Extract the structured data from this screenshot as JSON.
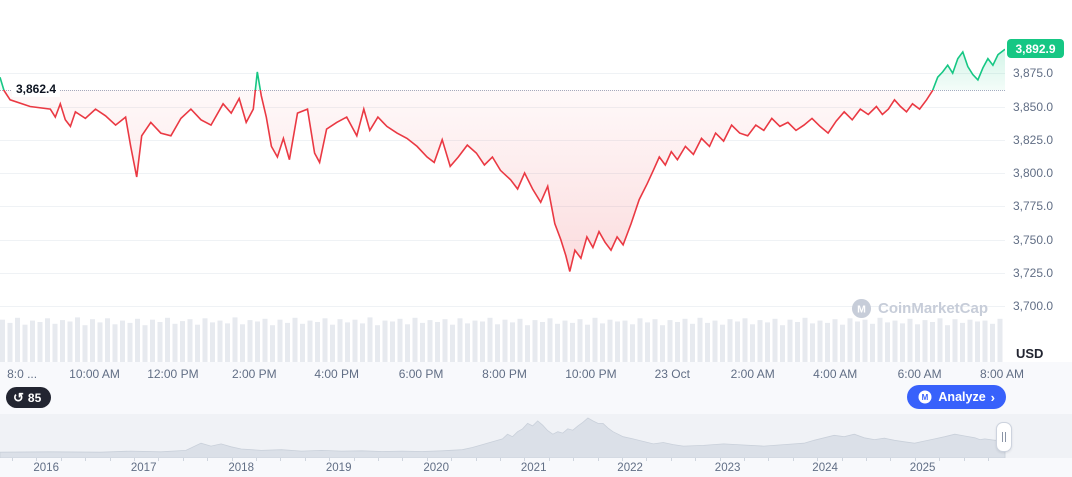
{
  "ui": {
    "usd_label": "USD",
    "history_count": "85",
    "analyze_label": "Analyze",
    "analyze_chevron": "›"
  },
  "watermark": {
    "text": "CoinMarketCap"
  },
  "colors": {
    "up": "#16c784",
    "down": "#ea3943",
    "accent_blue": "#3861fb",
    "grid": "#eff2f5",
    "axis_text": "#616e85",
    "volume": "#e7eaef",
    "mini_fill": "#dbe0e8",
    "mini_stroke": "#c9d0da",
    "badge_dark": "#222531",
    "watermark_gray": "#c7cdd9"
  },
  "chart_data": [
    {
      "type": "line",
      "title": "24h price chart",
      "unit": "USD",
      "grid": true,
      "baseline_price": 3862.4,
      "baseline_label": "3,862.4",
      "current_price": 3892.9,
      "current_price_label": "3,892.9",
      "ylim": [
        3658,
        3930
      ],
      "y_ticks": [
        {
          "label": "3,875.0",
          "price": 3875
        },
        {
          "label": "3,850.0",
          "price": 3850
        },
        {
          "label": "3,825.0",
          "price": 3825
        },
        {
          "label": "3,800.0",
          "price": 3800
        },
        {
          "label": "3,775.0",
          "price": 3775
        },
        {
          "label": "3,750.0",
          "price": 3750
        },
        {
          "label": "3,725.0",
          "price": 3725
        },
        {
          "label": "3,700.0",
          "price": 3700
        }
      ],
      "x_ticks": [
        {
          "label": "8:0 ...",
          "pos": 0.022
        },
        {
          "label": "10:00 AM",
          "pos": 0.094
        },
        {
          "label": "12:00 PM",
          "pos": 0.172
        },
        {
          "label": "2:00 PM",
          "pos": 0.253
        },
        {
          "label": "4:00 PM",
          "pos": 0.335
        },
        {
          "label": "6:00 PM",
          "pos": 0.419
        },
        {
          "label": "8:00 PM",
          "pos": 0.502
        },
        {
          "label": "10:00 PM",
          "pos": 0.588
        },
        {
          "label": "23 Oct",
          "pos": 0.669
        },
        {
          "label": "2:00 AM",
          "pos": 0.749
        },
        {
          "label": "4:00 AM",
          "pos": 0.831
        },
        {
          "label": "6:00 AM",
          "pos": 0.915
        },
        {
          "label": "8:00 AM",
          "pos": 0.997
        }
      ],
      "points": [
        [
          0.0,
          3872
        ],
        [
          0.004,
          3862
        ],
        [
          0.01,
          3855
        ],
        [
          0.03,
          3850
        ],
        [
          0.05,
          3848
        ],
        [
          0.055,
          3842
        ],
        [
          0.06,
          3852
        ],
        [
          0.065,
          3840
        ],
        [
          0.07,
          3835
        ],
        [
          0.075,
          3846
        ],
        [
          0.085,
          3841
        ],
        [
          0.095,
          3848
        ],
        [
          0.105,
          3843
        ],
        [
          0.115,
          3836
        ],
        [
          0.125,
          3842
        ],
        [
          0.13,
          3820
        ],
        [
          0.136,
          3797
        ],
        [
          0.141,
          3828
        ],
        [
          0.15,
          3838
        ],
        [
          0.16,
          3830
        ],
        [
          0.17,
          3828
        ],
        [
          0.18,
          3841
        ],
        [
          0.19,
          3848
        ],
        [
          0.2,
          3840
        ],
        [
          0.21,
          3836
        ],
        [
          0.222,
          3852
        ],
        [
          0.23,
          3845
        ],
        [
          0.238,
          3856
        ],
        [
          0.245,
          3838
        ],
        [
          0.252,
          3848
        ],
        [
          0.256,
          3876
        ],
        [
          0.26,
          3858
        ],
        [
          0.265,
          3842
        ],
        [
          0.27,
          3820
        ],
        [
          0.276,
          3812
        ],
        [
          0.282,
          3826
        ],
        [
          0.288,
          3810
        ],
        [
          0.296,
          3845
        ],
        [
          0.306,
          3848
        ],
        [
          0.313,
          3815
        ],
        [
          0.318,
          3808
        ],
        [
          0.325,
          3833
        ],
        [
          0.335,
          3838
        ],
        [
          0.345,
          3842
        ],
        [
          0.355,
          3828
        ],
        [
          0.362,
          3848
        ],
        [
          0.368,
          3832
        ],
        [
          0.376,
          3842
        ],
        [
          0.385,
          3835
        ],
        [
          0.395,
          3830
        ],
        [
          0.405,
          3826
        ],
        [
          0.415,
          3820
        ],
        [
          0.425,
          3812
        ],
        [
          0.432,
          3808
        ],
        [
          0.44,
          3825
        ],
        [
          0.448,
          3805
        ],
        [
          0.456,
          3812
        ],
        [
          0.465,
          3821
        ],
        [
          0.474,
          3815
        ],
        [
          0.482,
          3806
        ],
        [
          0.49,
          3812
        ],
        [
          0.498,
          3802
        ],
        [
          0.508,
          3795
        ],
        [
          0.515,
          3788
        ],
        [
          0.522,
          3800
        ],
        [
          0.53,
          3788
        ],
        [
          0.538,
          3778
        ],
        [
          0.545,
          3790
        ],
        [
          0.552,
          3762
        ],
        [
          0.558,
          3750
        ],
        [
          0.563,
          3738
        ],
        [
          0.567,
          3726
        ],
        [
          0.572,
          3742
        ],
        [
          0.578,
          3736
        ],
        [
          0.584,
          3752
        ],
        [
          0.59,
          3744
        ],
        [
          0.596,
          3756
        ],
        [
          0.602,
          3748
        ],
        [
          0.608,
          3742
        ],
        [
          0.614,
          3752
        ],
        [
          0.62,
          3746
        ],
        [
          0.628,
          3762
        ],
        [
          0.636,
          3780
        ],
        [
          0.644,
          3792
        ],
        [
          0.65,
          3802
        ],
        [
          0.656,
          3812
        ],
        [
          0.662,
          3806
        ],
        [
          0.668,
          3816
        ],
        [
          0.674,
          3810
        ],
        [
          0.682,
          3820
        ],
        [
          0.69,
          3814
        ],
        [
          0.698,
          3826
        ],
        [
          0.706,
          3820
        ],
        [
          0.712,
          3830
        ],
        [
          0.72,
          3824
        ],
        [
          0.728,
          3836
        ],
        [
          0.736,
          3830
        ],
        [
          0.744,
          3828
        ],
        [
          0.752,
          3836
        ],
        [
          0.76,
          3832
        ],
        [
          0.768,
          3841
        ],
        [
          0.776,
          3835
        ],
        [
          0.784,
          3838
        ],
        [
          0.792,
          3832
        ],
        [
          0.8,
          3836
        ],
        [
          0.808,
          3841
        ],
        [
          0.816,
          3835
        ],
        [
          0.824,
          3830
        ],
        [
          0.832,
          3839
        ],
        [
          0.84,
          3846
        ],
        [
          0.848,
          3840
        ],
        [
          0.856,
          3848
        ],
        [
          0.864,
          3844
        ],
        [
          0.872,
          3850
        ],
        [
          0.878,
          3844
        ],
        [
          0.884,
          3848
        ],
        [
          0.89,
          3855
        ],
        [
          0.896,
          3850
        ],
        [
          0.902,
          3846
        ],
        [
          0.908,
          3852
        ],
        [
          0.915,
          3848
        ],
        [
          0.922,
          3855
        ],
        [
          0.928,
          3862
        ],
        [
          0.933,
          3872
        ],
        [
          0.938,
          3876
        ],
        [
          0.943,
          3881
        ],
        [
          0.948,
          3875
        ],
        [
          0.953,
          3886
        ],
        [
          0.958,
          3891
        ],
        [
          0.963,
          3880
        ],
        [
          0.968,
          3874
        ],
        [
          0.973,
          3870
        ],
        [
          0.978,
          3879
        ],
        [
          0.983,
          3886
        ],
        [
          0.988,
          3881
        ],
        [
          0.993,
          3889
        ],
        [
          1.0,
          3893
        ]
      ],
      "volume_normalized": [
        0.92,
        0.85,
        0.96,
        0.81,
        0.9,
        0.87,
        0.95,
        0.83,
        0.91,
        0.88,
        0.97,
        0.8,
        0.93,
        0.86,
        0.95,
        0.82,
        0.9,
        0.85,
        0.94,
        0.8,
        0.92,
        0.87,
        0.96,
        0.83,
        0.89,
        0.93,
        0.81,
        0.95,
        0.86,
        0.9,
        0.84,
        0.97,
        0.82,
        0.91,
        0.88,
        0.94,
        0.8,
        0.92,
        0.85,
        0.96,
        0.83,
        0.9,
        0.87,
        0.95,
        0.81,
        0.93,
        0.86,
        0.92,
        0.84,
        0.97,
        0.8,
        0.9,
        0.88,
        0.94,
        0.82,
        0.96,
        0.85,
        0.91,
        0.87,
        0.93,
        0.81,
        0.95,
        0.84,
        0.9,
        0.88,
        0.96,
        0.82,
        0.92,
        0.86,
        0.94,
        0.8,
        0.91,
        0.87,
        0.95,
        0.83,
        0.9,
        0.85,
        0.93,
        0.81,
        0.96,
        0.84,
        0.92,
        0.88,
        0.9,
        0.82,
        0.95,
        0.86,
        0.93,
        0.8,
        0.91,
        0.87,
        0.94,
        0.83,
        0.96,
        0.85,
        0.9,
        0.81,
        0.93,
        0.88,
        0.95,
        0.82,
        0.91,
        0.86,
        0.94,
        0.8,
        0.92,
        0.87,
        0.96,
        0.84,
        0.9,
        0.85,
        0.93,
        0.81,
        0.95,
        0.88,
        0.92,
        0.83,
        0.96,
        0.86,
        0.9,
        0.84,
        0.94,
        0.82,
        0.91,
        0.87,
        0.95,
        0.8,
        0.93,
        0.85,
        0.92,
        0.88,
        0.9,
        0.83,
        0.94
      ]
    },
    {
      "type": "area",
      "title": "all-time range selector",
      "years": [
        "2016",
        "2017",
        "2018",
        "2019",
        "2020",
        "2021",
        "2022",
        "2023",
        "2024",
        "2025"
      ],
      "year_pos": [
        0.046,
        0.143,
        0.24,
        0.337,
        0.434,
        0.531,
        0.627,
        0.724,
        0.821,
        0.918
      ],
      "points": [
        [
          0.0,
          0.05
        ],
        [
          0.05,
          0.06
        ],
        [
          0.1,
          0.05
        ],
        [
          0.13,
          0.08
        ],
        [
          0.16,
          0.06
        ],
        [
          0.185,
          0.1
        ],
        [
          0.2,
          0.3
        ],
        [
          0.21,
          0.22
        ],
        [
          0.22,
          0.28
        ],
        [
          0.23,
          0.2
        ],
        [
          0.24,
          0.14
        ],
        [
          0.26,
          0.1
        ],
        [
          0.28,
          0.12
        ],
        [
          0.3,
          0.08
        ],
        [
          0.32,
          0.1
        ],
        [
          0.34,
          0.08
        ],
        [
          0.36,
          0.09
        ],
        [
          0.38,
          0.07
        ],
        [
          0.4,
          0.08
        ],
        [
          0.42,
          0.07
        ],
        [
          0.44,
          0.09
        ],
        [
          0.46,
          0.12
        ],
        [
          0.47,
          0.18
        ],
        [
          0.48,
          0.26
        ],
        [
          0.49,
          0.34
        ],
        [
          0.5,
          0.42
        ],
        [
          0.505,
          0.55
        ],
        [
          0.51,
          0.48
        ],
        [
          0.515,
          0.62
        ],
        [
          0.52,
          0.7
        ],
        [
          0.525,
          0.85
        ],
        [
          0.53,
          0.78
        ],
        [
          0.535,
          0.92
        ],
        [
          0.54,
          0.8
        ],
        [
          0.545,
          0.65
        ],
        [
          0.55,
          0.55
        ],
        [
          0.555,
          0.62
        ],
        [
          0.56,
          0.58
        ],
        [
          0.565,
          0.7
        ],
        [
          0.57,
          0.66
        ],
        [
          0.575,
          0.78
        ],
        [
          0.58,
          0.88
        ],
        [
          0.585,
          1.0
        ],
        [
          0.59,
          0.92
        ],
        [
          0.595,
          0.85
        ],
        [
          0.6,
          0.85
        ],
        [
          0.605,
          0.72
        ],
        [
          0.61,
          0.62
        ],
        [
          0.615,
          0.55
        ],
        [
          0.62,
          0.48
        ],
        [
          0.63,
          0.42
        ],
        [
          0.64,
          0.35
        ],
        [
          0.65,
          0.28
        ],
        [
          0.66,
          0.32
        ],
        [
          0.67,
          0.26
        ],
        [
          0.68,
          0.22
        ],
        [
          0.7,
          0.24
        ],
        [
          0.72,
          0.28
        ],
        [
          0.74,
          0.25
        ],
        [
          0.76,
          0.22
        ],
        [
          0.78,
          0.26
        ],
        [
          0.8,
          0.3
        ],
        [
          0.81,
          0.38
        ],
        [
          0.82,
          0.45
        ],
        [
          0.83,
          0.52
        ],
        [
          0.84,
          0.48
        ],
        [
          0.85,
          0.55
        ],
        [
          0.86,
          0.45
        ],
        [
          0.87,
          0.4
        ],
        [
          0.88,
          0.44
        ],
        [
          0.89,
          0.38
        ],
        [
          0.9,
          0.34
        ],
        [
          0.91,
          0.3
        ],
        [
          0.92,
          0.36
        ],
        [
          0.93,
          0.42
        ],
        [
          0.94,
          0.48
        ],
        [
          0.95,
          0.55
        ],
        [
          0.96,
          0.5
        ],
        [
          0.97,
          0.45
        ],
        [
          0.975,
          0.4
        ],
        [
          0.98,
          0.42
        ],
        [
          0.99,
          0.38
        ],
        [
          1.0,
          0.4
        ]
      ]
    }
  ]
}
